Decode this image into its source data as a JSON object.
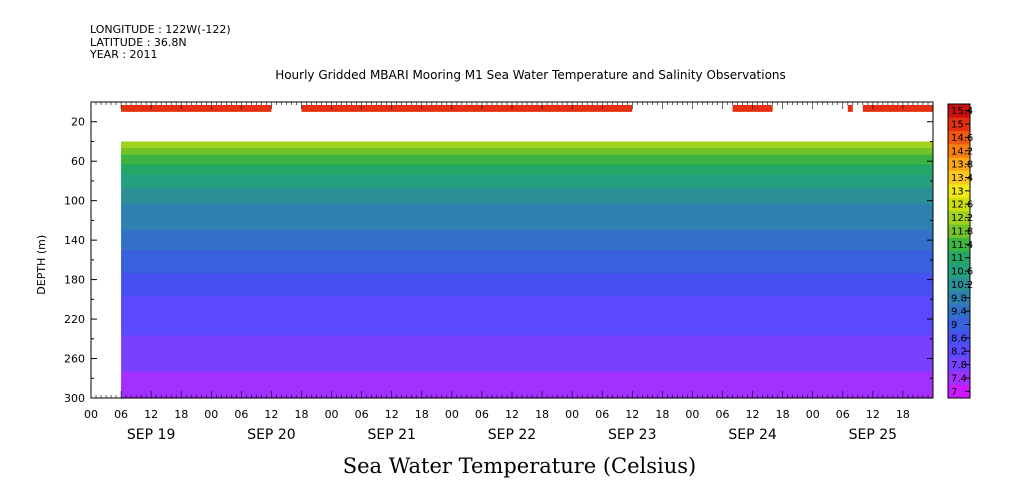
{
  "header": {
    "longitude": "LONGITUDE : 122W(-122)",
    "latitude": "LATITUDE : 36.8N",
    "year": "YEAR : 2011",
    "title": "Hourly Gridded MBARI Mooring M1 Sea Water Temperature and Salinity Observations"
  },
  "footer": {
    "variable": "Sea Water Temperature (Celsius)"
  },
  "chart_data": {
    "type": "heatmap",
    "title": "Hourly Gridded MBARI Mooring M1 Sea Water Temperature and Salinity Observations",
    "xlabel": "",
    "ylabel": "DEPTH (m)",
    "x_range_hours": [
      0,
      168
    ],
    "x_tick_hours": [
      "00",
      "06",
      "12",
      "18"
    ],
    "x_day_labels": [
      "SEP 19",
      "SEP 20",
      "SEP 21",
      "SEP 22",
      "SEP 23",
      "SEP 24",
      "SEP 25"
    ],
    "ylim": [
      300,
      0
    ],
    "y_ticks": [
      20,
      60,
      100,
      140,
      180,
      220,
      260,
      300
    ],
    "colorbar": {
      "label": "Sea Water Temperature (Celsius)",
      "ticks": [
        "15.4",
        "15",
        "14.6",
        "14.2",
        "13.8",
        "13.4",
        "13",
        "12.6",
        "12.2",
        "11.8",
        "11.4",
        "11",
        "10.6",
        "10.2",
        "9.8",
        "9.4",
        "9",
        "8.6",
        "8.2",
        "7.8",
        "7.4",
        "7"
      ],
      "levels": [
        7,
        15.4
      ]
    },
    "surface_band": {
      "depth_top_m": 0,
      "depth_bottom_m": 10,
      "temperature_c": 14.8,
      "present_hours": [
        [
          6,
          36
        ],
        [
          42,
          108
        ],
        [
          128,
          136
        ],
        [
          151,
          152
        ],
        [
          154,
          168
        ]
      ]
    },
    "profile": {
      "depth_m": [
        40,
        60,
        80,
        100,
        120,
        140,
        160,
        180,
        200,
        220,
        240,
        260,
        280,
        300
      ],
      "temperature_c": [
        12.2,
        11.3,
        10.6,
        10.1,
        9.8,
        9.5,
        9.1,
        8.8,
        8.5,
        8.3,
        8.1,
        7.9,
        7.7,
        7.5
      ]
    },
    "gap_depth_m": [
      10,
      40
    ],
    "data_start_hour": 6,
    "grid": false
  },
  "colors": {
    "scale": [
      "#cc19ff",
      "#a230ff",
      "#7a40ff",
      "#5c48ff",
      "#4650f0",
      "#3a60dd",
      "#3370c8",
      "#2e80b0",
      "#2a9096",
      "#25a07e",
      "#22a864",
      "#3cb440",
      "#72c22a",
      "#a0d21e",
      "#cce010",
      "#f0e818",
      "#fcc820",
      "#fca818",
      "#f88010",
      "#f05810",
      "#e43010",
      "#c81010"
    ]
  }
}
